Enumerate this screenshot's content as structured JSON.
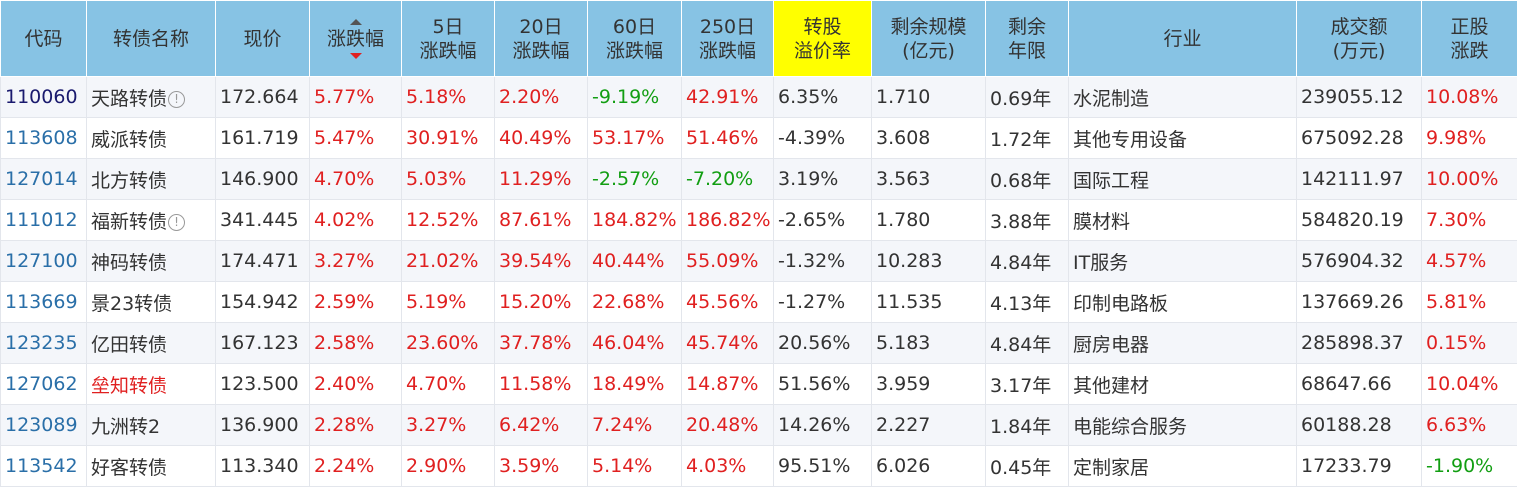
{
  "headers": [
    {
      "l1": "代码",
      "l2": ""
    },
    {
      "l1": "转债名称",
      "l2": ""
    },
    {
      "l1": "现价",
      "l2": ""
    },
    {
      "l1": "涨跌幅",
      "l2": "",
      "sorted": "desc"
    },
    {
      "l1": "5日",
      "l2": "涨跌幅"
    },
    {
      "l1": "20日",
      "l2": "涨跌幅"
    },
    {
      "l1": "60日",
      "l2": "涨跌幅"
    },
    {
      "l1": "250日",
      "l2": "涨跌幅"
    },
    {
      "l1": "转股",
      "l2": "溢价率",
      "highlight": true
    },
    {
      "l1": "剩余规模",
      "l2": "(亿元)"
    },
    {
      "l1": "剩余",
      "l2": "年限"
    },
    {
      "l1": "行业",
      "l2": ""
    },
    {
      "l1": "成交额",
      "l2": "(万元)"
    },
    {
      "l1": "正股",
      "l2": "涨跌"
    }
  ],
  "colors": {
    "header_bg": "#87c3e4",
    "highlight": "#ffff00",
    "up": "#e02020",
    "down": "#129e12",
    "code": "#2a6fa8"
  },
  "rows": [
    {
      "code": "110060",
      "name": "天路转债",
      "info": true,
      "price": "172.664",
      "chg": "5.77%",
      "d5": "5.18%",
      "d20": "2.20%",
      "d60": "-9.19%",
      "d250": "42.91%",
      "premium": "6.35%",
      "scale": "1.710",
      "years": "0.69年",
      "industry": "水泥制造",
      "amount": "239055.12",
      "stock": "10.08%",
      "selected": true
    },
    {
      "code": "113608",
      "name": "威派转债",
      "price": "161.719",
      "chg": "5.47%",
      "d5": "30.91%",
      "d20": "40.49%",
      "d60": "53.17%",
      "d250": "51.46%",
      "premium": "-4.39%",
      "scale": "3.608",
      "years": "1.72年",
      "industry": "其他专用设备",
      "amount": "675092.28",
      "stock": "9.98%"
    },
    {
      "code": "127014",
      "name": "北方转债",
      "price": "146.900",
      "chg": "4.70%",
      "d5": "5.03%",
      "d20": "11.29%",
      "d60": "-2.57%",
      "d250": "-7.20%",
      "premium": "3.19%",
      "scale": "3.563",
      "years": "0.68年",
      "industry": "国际工程",
      "amount": "142111.97",
      "stock": "10.00%"
    },
    {
      "code": "111012",
      "name": "福新转债",
      "info": true,
      "price": "341.445",
      "chg": "4.02%",
      "d5": "12.52%",
      "d20": "87.61%",
      "d60": "184.82%",
      "d250": "186.82%",
      "premium": "-2.65%",
      "scale": "1.780",
      "years": "3.88年",
      "industry": "膜材料",
      "amount": "584820.19",
      "stock": "7.30%"
    },
    {
      "code": "127100",
      "name": "神码转债",
      "price": "174.471",
      "chg": "3.27%",
      "d5": "21.02%",
      "d20": "39.54%",
      "d60": "40.44%",
      "d250": "55.09%",
      "premium": "-1.32%",
      "scale": "10.283",
      "years": "4.84年",
      "industry": "IT服务",
      "amount": "576904.32",
      "stock": "4.57%"
    },
    {
      "code": "113669",
      "name": "景23转债",
      "price": "154.942",
      "chg": "2.59%",
      "d5": "5.19%",
      "d20": "15.20%",
      "d60": "22.68%",
      "d250": "45.56%",
      "premium": "-1.27%",
      "scale": "11.535",
      "years": "4.13年",
      "industry": "印制电路板",
      "amount": "137669.26",
      "stock": "5.81%"
    },
    {
      "code": "123235",
      "name": "亿田转债",
      "price": "167.123",
      "chg": "2.58%",
      "d5": "23.60%",
      "d20": "37.78%",
      "d60": "46.04%",
      "d250": "45.74%",
      "premium": "20.56%",
      "scale": "5.183",
      "years": "4.84年",
      "industry": "厨房电器",
      "amount": "285898.37",
      "stock": "0.15%"
    },
    {
      "code": "127062",
      "name": "垒知转债",
      "name_red": true,
      "price": "123.500",
      "chg": "2.40%",
      "d5": "4.70%",
      "d20": "11.58%",
      "d60": "18.49%",
      "d250": "14.87%",
      "premium": "51.56%",
      "scale": "3.959",
      "years": "3.17年",
      "industry": "其他建材",
      "amount": "68647.66",
      "stock": "10.04%"
    },
    {
      "code": "123089",
      "name": "九洲转2",
      "price": "136.900",
      "chg": "2.28%",
      "d5": "3.27%",
      "d20": "6.42%",
      "d60": "7.24%",
      "d250": "20.48%",
      "premium": "14.26%",
      "scale": "2.227",
      "years": "1.84年",
      "industry": "电能综合服务",
      "amount": "60188.28",
      "stock": "6.63%"
    },
    {
      "code": "113542",
      "name": "好客转债",
      "price": "113.340",
      "chg": "2.24%",
      "d5": "2.90%",
      "d20": "3.59%",
      "d60": "5.14%",
      "d250": "4.03%",
      "premium": "95.51%",
      "scale": "6.026",
      "years": "0.45年",
      "industry": "定制家居",
      "amount": "17233.79",
      "stock": "-1.90%"
    }
  ]
}
